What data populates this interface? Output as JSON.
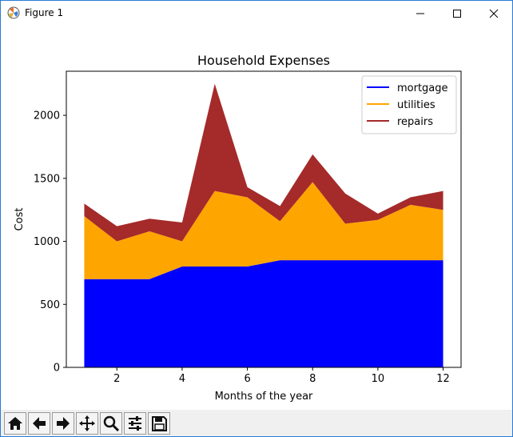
{
  "window": {
    "title": "Figure 1",
    "icons": {
      "app": "matplotlib-figure-icon",
      "minimize": "minimize-icon",
      "maximize": "maximize-icon",
      "close": "close-icon"
    }
  },
  "toolbar": {
    "buttons": [
      {
        "name": "home-icon"
      },
      {
        "name": "back-arrow-icon"
      },
      {
        "name": "forward-arrow-icon"
      },
      {
        "name": "pan-icon"
      },
      {
        "name": "zoom-icon"
      },
      {
        "name": "configure-subplots-icon"
      },
      {
        "name": "save-icon"
      }
    ]
  },
  "chart_data": {
    "type": "area",
    "stacked": true,
    "title": "Household Expenses",
    "xlabel": "Months of the year",
    "ylabel": "Cost",
    "x": [
      1,
      2,
      3,
      4,
      5,
      6,
      7,
      8,
      9,
      10,
      11,
      12
    ],
    "xlim": [
      0.45,
      12.55
    ],
    "ylim": [
      0,
      2350
    ],
    "xticks": [
      2,
      4,
      6,
      8,
      10,
      12
    ],
    "yticks": [
      0,
      500,
      1000,
      1500,
      2000
    ],
    "grid": false,
    "legend_position": "top-right",
    "series": [
      {
        "name": "mortgage",
        "color": "#0000ff",
        "values": [
          700,
          700,
          700,
          800,
          800,
          800,
          850,
          850,
          850,
          850,
          850,
          850
        ]
      },
      {
        "name": "utilities",
        "color": "#ffa500",
        "values": [
          500,
          300,
          380,
          200,
          600,
          550,
          310,
          620,
          290,
          320,
          440,
          400
        ]
      },
      {
        "name": "repairs",
        "color": "#a52a2a",
        "values": [
          100,
          120,
          100,
          150,
          850,
          80,
          120,
          220,
          240,
          50,
          60,
          150
        ]
      }
    ]
  }
}
